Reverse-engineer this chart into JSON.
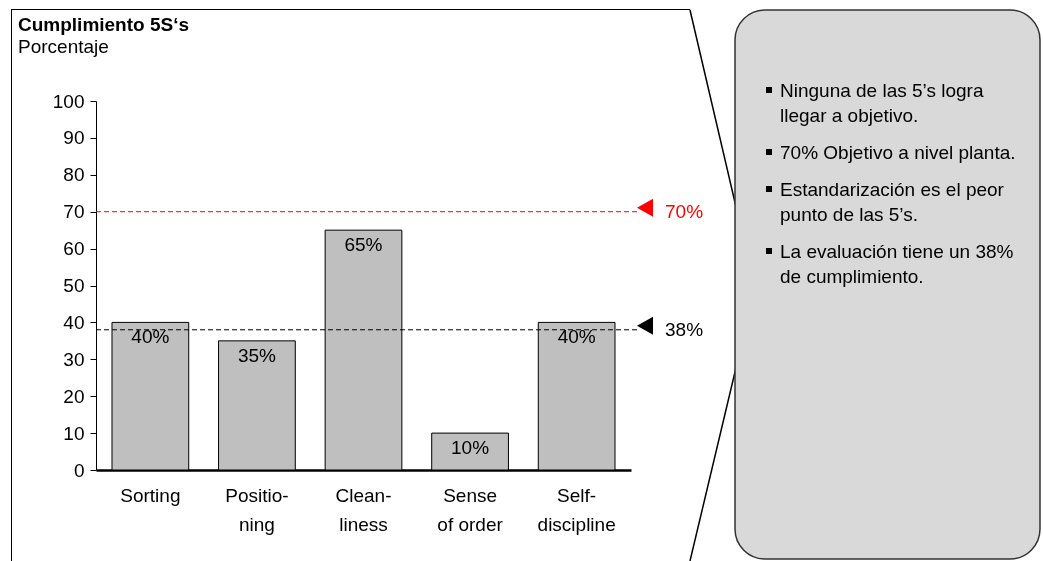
{
  "chart_data": {
    "type": "bar",
    "title": "Cumplimiento 5S‘s",
    "subtitle": "Porcentaje",
    "categories": [
      "Sorting",
      "Positio-\nning",
      "Clean-\nliness",
      "Sense\nof order",
      "Self-\ndiscipline"
    ],
    "values": [
      40,
      35,
      65,
      10,
      40
    ],
    "color": "#bfbfbf",
    "value_labels": [
      "40%",
      "35%",
      "65%",
      "10%",
      "40%"
    ],
    "ylim": [
      0,
      100
    ],
    "yticks": [
      0,
      10,
      20,
      30,
      40,
      50,
      60,
      70,
      80,
      90,
      100
    ],
    "grid": false,
    "ref_lines": [
      {
        "axis": "y",
        "value": 70,
        "label": "70%",
        "color": "#ff0000",
        "line_style": "dashed"
      },
      {
        "axis": "y",
        "value": 38,
        "label": "38%",
        "color": "#000000",
        "line_style": "dashed"
      }
    ],
    "annotations": [
      "Ninguna de las 5’s logra llegar a objetivo.",
      "70% Objetivo a nivel planta.",
      "Estandarización es el peor punto de las 5’s.",
      "La evaluación tiene un 38% de cumplimiento."
    ]
  }
}
